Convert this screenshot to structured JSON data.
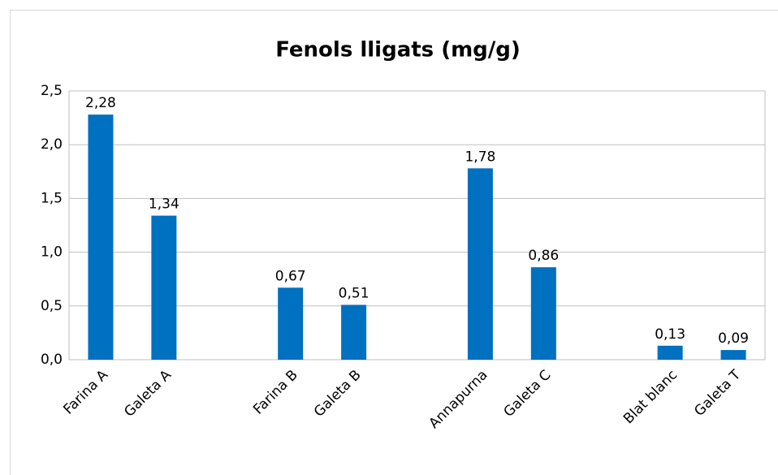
{
  "chart_data": {
    "type": "bar",
    "title": "Fenols lligats (mg/g)",
    "categories": [
      "Farina A",
      "Galeta A",
      null,
      "Farina B",
      "Galeta B",
      null,
      "Annapurna",
      "Galeta C",
      null,
      "Blat blanc",
      "Galeta T"
    ],
    "values": [
      2.28,
      1.34,
      null,
      0.67,
      0.51,
      null,
      1.78,
      0.86,
      null,
      0.13,
      0.09
    ],
    "value_labels": [
      "2,28",
      "1,34",
      null,
      "0,67",
      "0,51",
      null,
      "1,78",
      "0,86",
      null,
      "0,13",
      "0,09"
    ],
    "color": "#0070c0",
    "ylim": [
      0,
      2.5
    ],
    "yticks": [
      {
        "value": 0,
        "label": "0,0"
      },
      {
        "value": 0.5,
        "label": "0,5"
      },
      {
        "value": 1,
        "label": "1,0"
      },
      {
        "value": 1.5,
        "label": "1,5"
      },
      {
        "value": 2,
        "label": "2,0"
      },
      {
        "value": 2.5,
        "label": "2,5"
      }
    ],
    "grid": true
  }
}
